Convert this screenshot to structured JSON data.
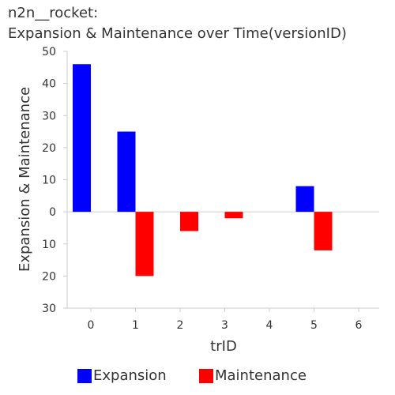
{
  "title_line1": "n2n__rocket:",
  "title_line2": "Expansion & Maintenance over Time(versionID)",
  "chart_data": {
    "type": "bar",
    "title": "n2n__rocket: Expansion & Maintenance over Time(versionID)",
    "xlabel": "trID",
    "ylabel": "Expansion & Maintenance",
    "x_ticks": [
      "0",
      "1",
      "2",
      "3",
      "4",
      "5",
      "6"
    ],
    "y_ticks": [
      {
        "value": 50,
        "label": "50"
      },
      {
        "value": 40,
        "label": "40"
      },
      {
        "value": 30,
        "label": "30"
      },
      {
        "value": 20,
        "label": "20"
      },
      {
        "value": 10,
        "label": "10"
      },
      {
        "value": 0,
        "label": "0"
      },
      {
        "value": -10,
        "label": "10"
      },
      {
        "value": -20,
        "label": "20"
      },
      {
        "value": -30,
        "label": "30"
      }
    ],
    "ylim": [
      -30,
      50
    ],
    "grid": false,
    "legend_position": "bottom",
    "series": [
      {
        "name": "Expansion",
        "color": "#0000ff",
        "x": [
          0,
          1,
          5
        ],
        "values": [
          46,
          25,
          8
        ]
      },
      {
        "name": "Maintenance",
        "color": "#ff0000",
        "x": [
          1,
          2,
          3,
          5
        ],
        "values": [
          -20,
          -6,
          -2,
          -12
        ]
      }
    ]
  }
}
